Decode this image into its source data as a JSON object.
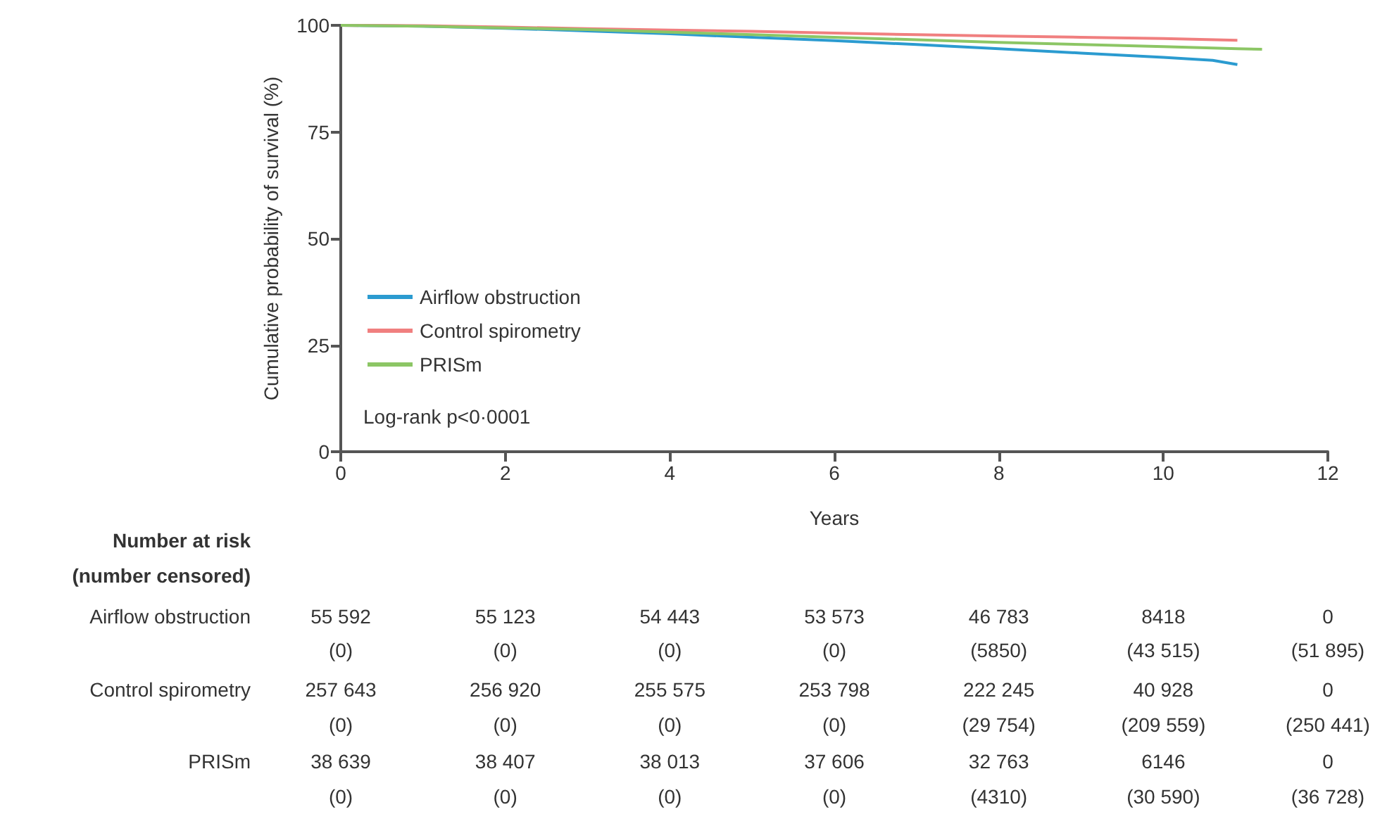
{
  "chart_data": {
    "type": "line",
    "xlabel": "Years",
    "ylabel": "Cumulative probability of survival (%)",
    "xlim": [
      0,
      12
    ],
    "ylim": [
      0,
      100
    ],
    "xticks": [
      0,
      2,
      4,
      6,
      8,
      10,
      12
    ],
    "yticks": [
      0,
      25,
      50,
      75,
      100
    ],
    "legend": "bottom left",
    "marker": "none",
    "grid": false,
    "series": [
      {
        "name": "Airflow obstruction",
        "color": "#2b9bd0",
        "x": [
          0,
          1,
          2,
          3,
          4,
          5,
          6,
          7,
          8,
          9,
          10,
          10.6,
          10.9
        ],
        "values": [
          100,
          99.8,
          99.3,
          98.7,
          98,
          97.2,
          96.4,
          95.5,
          94.5,
          93.5,
          92.5,
          91.8,
          90.8
        ]
      },
      {
        "name": "Control spirometry",
        "color": "#f07f7f",
        "x": [
          0,
          1,
          2,
          3,
          4,
          5,
          6,
          7,
          8,
          9,
          10,
          10.9
        ],
        "values": [
          100,
          99.9,
          99.6,
          99.2,
          98.9,
          98.6,
          98.2,
          97.8,
          97.5,
          97.2,
          96.9,
          96.5
        ]
      },
      {
        "name": "PRISm",
        "color": "#8cc665",
        "x": [
          0,
          1,
          2,
          3,
          4,
          5,
          6,
          7,
          8,
          9,
          10,
          10.9,
          11.2
        ],
        "values": [
          100,
          99.8,
          99.4,
          99,
          98.4,
          97.8,
          97.2,
          96.6,
          96,
          95.5,
          95,
          94.5,
          94.4
        ]
      }
    ],
    "annotations": [
      "Log-rank p<0·0001",
      "Number at risk",
      "(number censored)",
      "Airflow obstruction",
      "55 592",
      "55 123",
      "54 443",
      "53 573",
      "46 783",
      "8418",
      "0",
      "(0)",
      "(0)",
      "(0)",
      "(0)",
      "(5850)",
      "(43 515)",
      "(51 895)",
      "Control spirometry",
      "257 643",
      "256 920",
      "255 575",
      "253 798",
      "222 245",
      "40 928",
      "0",
      "(0)",
      "(0)",
      "(0)",
      "(0)",
      "(29 754)",
      "(209 559)",
      "(250 441)",
      "PRISm",
      "38 639",
      "38 407",
      "38 013",
      "37 606",
      "32 763",
      "6146",
      "0",
      "(0)",
      "(0)",
      "(0)",
      "(0)",
      "(4310)",
      "(30 590)",
      "(36 728)"
    ]
  }
}
